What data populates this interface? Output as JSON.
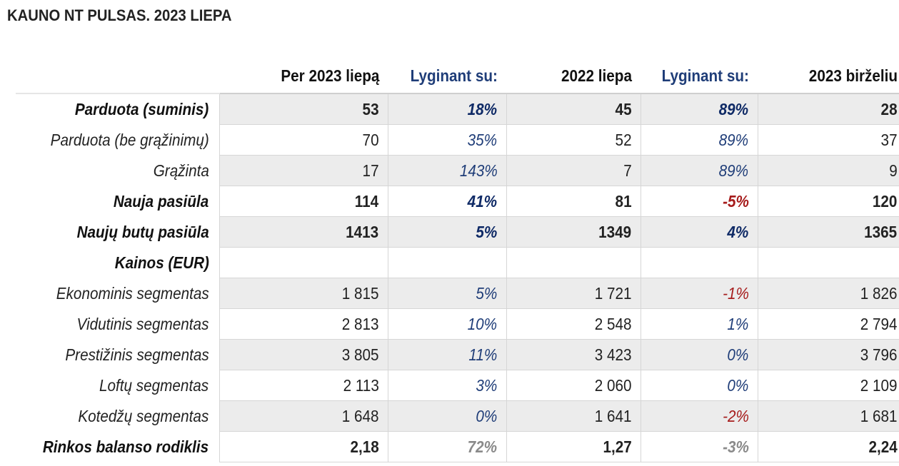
{
  "title": "KAUNO NT PULSAS. 2023 LIEPA",
  "headers": [
    "Per 2023 liepą",
    "Lyginant su:",
    "2022 liepa",
    "Lyginant su:",
    "2023 birželiu"
  ],
  "colors": {
    "positive": "#1f3d78",
    "negative": "#a61c1c",
    "muted": "#8a8a8a",
    "row_shade": "#ececec"
  },
  "rows": [
    {
      "label": "Parduota (suminis)",
      "bold": true,
      "shade": true,
      "values": [
        "53",
        "18%",
        "45",
        "89%",
        "28"
      ],
      "tone": [
        "",
        "pos",
        "",
        "pos",
        ""
      ]
    },
    {
      "label": "Parduota (be grąžinimų)",
      "bold": false,
      "shade": false,
      "values": [
        "70",
        "35%",
        "52",
        "89%",
        "37"
      ],
      "tone": [
        "",
        "pos",
        "",
        "pos",
        ""
      ]
    },
    {
      "label": "Grąžinta",
      "bold": false,
      "shade": true,
      "values": [
        "17",
        "143%",
        "7",
        "89%",
        "9"
      ],
      "tone": [
        "",
        "pos",
        "",
        "pos",
        ""
      ]
    },
    {
      "label": "Nauja pasiūla",
      "bold": true,
      "shade": false,
      "values": [
        "114",
        "41%",
        "81",
        "-5%",
        "120"
      ],
      "tone": [
        "",
        "pos",
        "",
        "neg",
        ""
      ]
    },
    {
      "label": "Naujų butų pasiūla",
      "bold": true,
      "shade": true,
      "values": [
        "1413",
        "5%",
        "1349",
        "4%",
        "1365"
      ],
      "tone": [
        "",
        "pos",
        "",
        "pos",
        ""
      ]
    },
    {
      "label": "Kainos (EUR)",
      "bold": true,
      "shade": false,
      "values": [
        "",
        "",
        "",
        "",
        ""
      ],
      "tone": [
        "",
        "",
        "",
        "",
        ""
      ]
    },
    {
      "label": "Ekonominis segmentas",
      "bold": false,
      "shade": true,
      "values": [
        "1 815",
        "5%",
        "1 721",
        "-1%",
        "1 826"
      ],
      "tone": [
        "",
        "pos",
        "",
        "neg",
        ""
      ]
    },
    {
      "label": "Vidutinis segmentas",
      "bold": false,
      "shade": false,
      "values": [
        "2 813",
        "10%",
        "2 548",
        "1%",
        "2 794"
      ],
      "tone": [
        "",
        "pos",
        "",
        "pos",
        ""
      ]
    },
    {
      "label": "Prestižinis segmentas",
      "bold": false,
      "shade": true,
      "values": [
        "3 805",
        "11%",
        "3 423",
        "0%",
        "3 796"
      ],
      "tone": [
        "",
        "pos",
        "",
        "pos",
        ""
      ]
    },
    {
      "label": "Loftų segmentas",
      "bold": false,
      "shade": false,
      "values": [
        "2 113",
        "3%",
        "2 060",
        "0%",
        "2 109"
      ],
      "tone": [
        "",
        "pos",
        "",
        "pos",
        ""
      ]
    },
    {
      "label": "Kotedžų segmentas",
      "bold": false,
      "shade": true,
      "values": [
        "1 648",
        "0%",
        "1 641",
        "-2%",
        "1 681"
      ],
      "tone": [
        "",
        "pos",
        "",
        "neg",
        ""
      ]
    },
    {
      "label": "Rinkos balanso rodiklis",
      "bold": true,
      "shade": false,
      "values": [
        "2,18",
        "72%",
        "1,27",
        "-3%",
        "2,24"
      ],
      "tone": [
        "",
        "muted",
        "",
        "muted",
        ""
      ]
    }
  ]
}
